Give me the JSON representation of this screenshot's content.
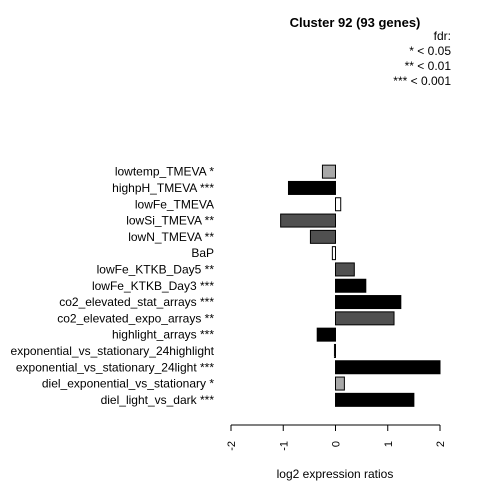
{
  "chart_data": {
    "type": "bar",
    "orientation": "horizontal",
    "title": "Cluster 92 (93 genes)",
    "xlabel": "log2 expression ratios",
    "xlim": [
      -2,
      2
    ],
    "xticks": [
      "-2",
      "-1",
      "0",
      "1",
      "2"
    ],
    "legend": {
      "title": "fdr:",
      "entries": [
        "* < 0.05",
        "** < 0.01",
        "*** < 0.001"
      ],
      "placement": "top-right"
    },
    "categories": [
      "lowtemp_TMEVA *",
      "highpH_TMEVA ***",
      "lowFe_TMEVA",
      "lowSi_TMEVA **",
      "lowN_TMEVA **",
      "BaP",
      "lowFe_KTKB_Day5 **",
      "lowFe_KTKB_Day3 ***",
      "co2_elevated_stat_arrays ***",
      "co2_elevated_expo_arrays **",
      "highlight_arrays ***",
      "exponential_vs_stationary_24highlight",
      "exponential_vs_stationary_24light ***",
      "diel_exponential_vs_stationary *",
      "diel_light_vs_dark ***"
    ],
    "values": [
      -0.25,
      -0.9,
      0.1,
      -1.05,
      -0.48,
      -0.06,
      0.36,
      0.58,
      1.25,
      1.12,
      -0.35,
      -0.02,
      2.0,
      0.17,
      1.5
    ],
    "colors": [
      "#a8a8a8",
      "#000000",
      "#ffffff",
      "#505050",
      "#505050",
      "#ffffff",
      "#505050",
      "#000000",
      "#000000",
      "#505050",
      "#000000",
      "#ffffff",
      "#000000",
      "#a8a8a8",
      "#000000"
    ]
  }
}
